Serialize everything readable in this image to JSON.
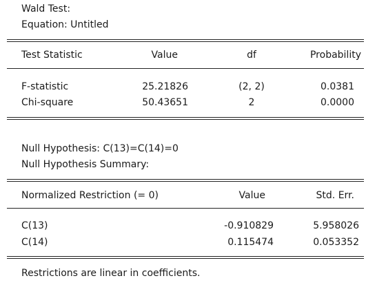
{
  "header": {
    "title": "Wald Test:",
    "equation": "Equation: Untitled"
  },
  "test_table": {
    "columns": [
      "Test Statistic",
      "Value",
      "df",
      "Probability"
    ],
    "rows": [
      {
        "name": "F-statistic",
        "value": "25.21826",
        "df": "(2, 2)",
        "prob": "0.0381"
      },
      {
        "name": "Chi-square",
        "value": "50.43651",
        "df": "2",
        "prob": "0.0000"
      }
    ]
  },
  "hypothesis": {
    "null": "Null Hypothesis: C(13)=C(14)=0",
    "summary": "Null Hypothesis Summary:"
  },
  "restriction_table": {
    "columns": [
      "Normalized Restriction (= 0)",
      "Value",
      "Std. Err."
    ],
    "rows": [
      {
        "name": "C(13)",
        "value": "-0.910829",
        "se": "5.958026"
      },
      {
        "name": "C(14)",
        "value": "0.115474",
        "se": "0.053352"
      }
    ]
  },
  "footer": {
    "note": "Restrictions are linear in coefficients."
  }
}
